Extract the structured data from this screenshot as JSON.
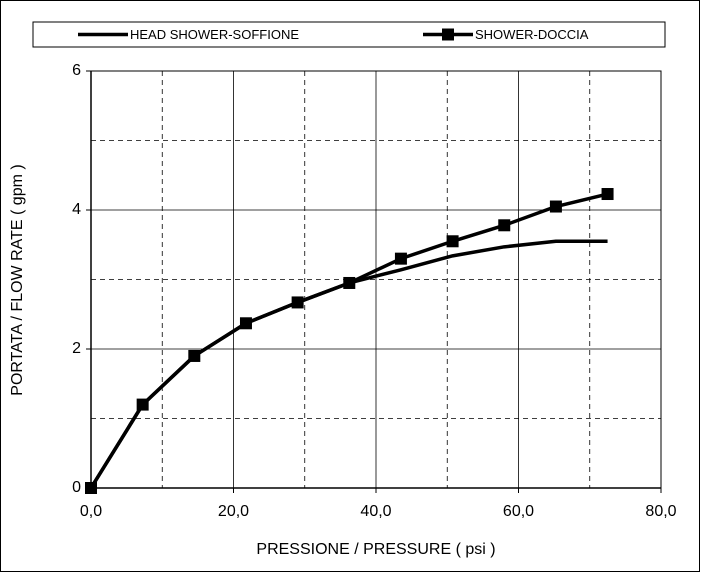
{
  "chart_data": {
    "type": "line",
    "xlabel": "PRESSIONE / PRESSURE ( psi )",
    "ylabel": "PORTATA / FLOW RATE ( gpm )",
    "x": [
      0,
      7.25,
      14.5,
      21.75,
      29,
      36.25,
      43.5,
      50.75,
      58,
      65.25,
      72.5
    ],
    "series": [
      {
        "name": "HEAD SHOWER-SOFFIONE",
        "color": "#000000",
        "marker": "none",
        "values": [
          0,
          1.2,
          1.9,
          2.37,
          2.67,
          2.95,
          3.14,
          3.34,
          3.47,
          3.55,
          3.55
        ]
      },
      {
        "name": "SHOWER-DOCCIA",
        "color": "#000000",
        "marker": "square",
        "values": [
          0,
          1.2,
          1.9,
          2.37,
          2.67,
          2.95,
          3.3,
          3.55,
          3.78,
          4.05,
          4.23
        ]
      }
    ],
    "xlim": [
      0,
      80
    ],
    "xticks": [
      {
        "value": 0,
        "label": "0,0"
      },
      {
        "value": 20,
        "label": "20,0"
      },
      {
        "value": 40,
        "label": "40,0"
      },
      {
        "value": 60,
        "label": "60,0"
      },
      {
        "value": 80,
        "label": "80,0"
      }
    ],
    "minor_xticks": [
      10,
      30,
      50,
      70
    ],
    "ylim": [
      0,
      6
    ],
    "yticks": [
      0,
      2,
      4,
      6
    ],
    "minor_yticks": [
      1,
      3,
      5
    ],
    "grid": true,
    "legend": "top"
  }
}
